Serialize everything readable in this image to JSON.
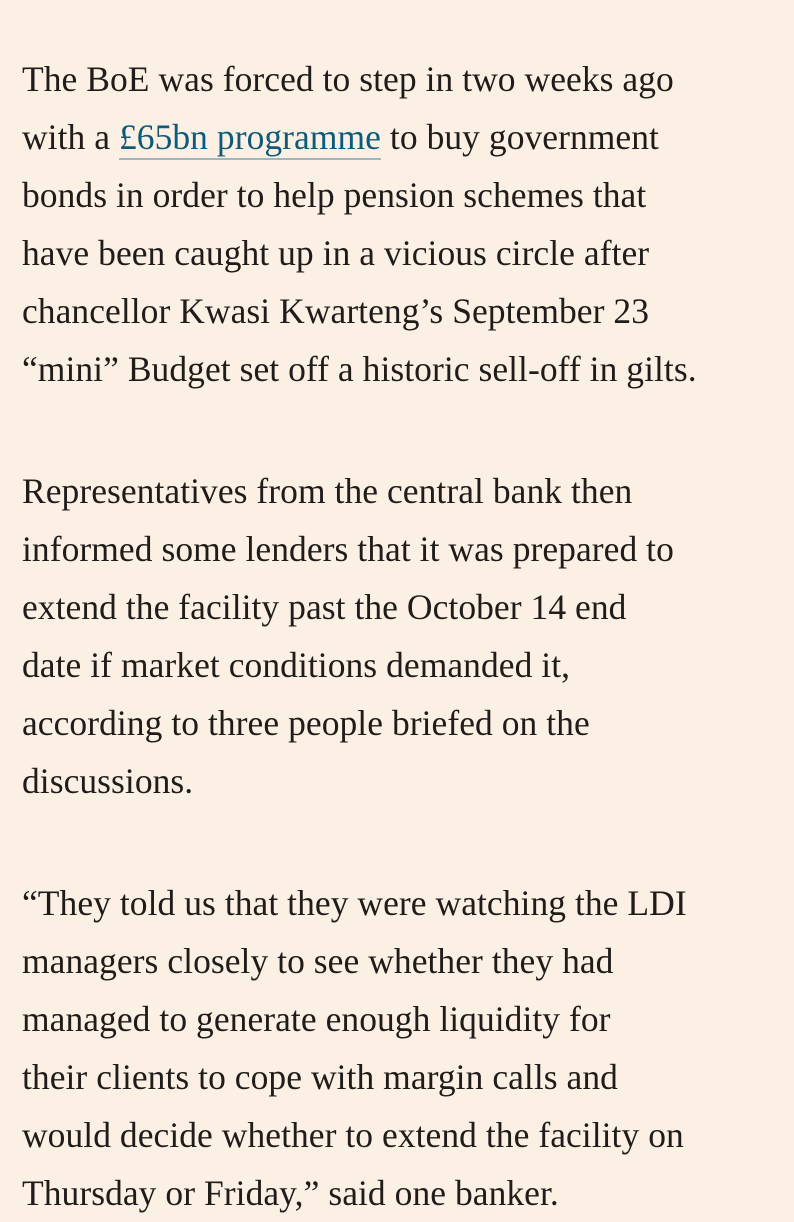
{
  "article": {
    "paragraphs": [
      {
        "lines": [
          {
            "segments": [
              {
                "text": "The BoE was forced to step in two weeks ago"
              }
            ]
          },
          {
            "segments": [
              {
                "text": "with a "
              },
              {
                "text": "£65bn programme",
                "link": true
              },
              {
                "text": " to buy government"
              }
            ]
          },
          {
            "segments": [
              {
                "text": "bonds in order to help pension schemes that"
              }
            ]
          },
          {
            "segments": [
              {
                "text": "have been caught up in a vicious circle after"
              }
            ]
          },
          {
            "segments": [
              {
                "text": "chancellor Kwasi Kwarteng’s September 23"
              }
            ]
          },
          {
            "segments": [
              {
                "text": "“mini” Budget set off a historic sell-off in gilts."
              }
            ]
          }
        ]
      },
      {
        "lines": [
          {
            "segments": [
              {
                "text": "Representatives from the central bank then"
              }
            ]
          },
          {
            "segments": [
              {
                "text": "informed some lenders that it was prepared to"
              }
            ]
          },
          {
            "segments": [
              {
                "text": "extend the facility past the October 14 end"
              }
            ]
          },
          {
            "segments": [
              {
                "text": "date if market conditions demanded it,"
              }
            ]
          },
          {
            "segments": [
              {
                "text": "according to three people briefed on the"
              }
            ]
          },
          {
            "segments": [
              {
                "text": "discussions."
              }
            ]
          }
        ]
      },
      {
        "lines": [
          {
            "segments": [
              {
                "text": "“They told us that they were watching the LDI"
              }
            ]
          },
          {
            "segments": [
              {
                "text": "managers closely to see whether they had"
              }
            ]
          },
          {
            "segments": [
              {
                "text": "managed to generate enough liquidity for"
              }
            ]
          },
          {
            "segments": [
              {
                "text": "their clients to cope with margin calls and"
              }
            ]
          },
          {
            "segments": [
              {
                "text": "would decide whether to extend the facility on"
              }
            ]
          },
          {
            "segments": [
              {
                "text": "Thursday or Friday,” said one banker."
              }
            ]
          }
        ]
      }
    ]
  },
  "colors": {
    "background": "#fcf0e5",
    "text": "#1f1c19",
    "link": "#0d5a7a",
    "link_underline": "#9fb7bf"
  }
}
